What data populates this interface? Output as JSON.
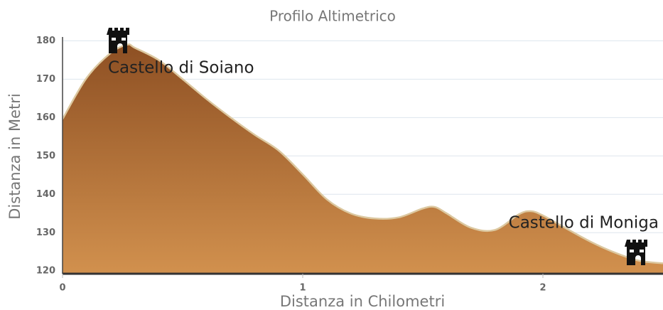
{
  "chart_data": {
    "type": "area",
    "title": "Profilo Altimetrico",
    "x_label": "Distanza in Chilometri",
    "y_label": "Distanza in Metri",
    "x": [
      0,
      0.1,
      0.2,
      0.27,
      0.3,
      0.4,
      0.5,
      0.6,
      0.7,
      0.8,
      0.9,
      1.0,
      1.1,
      1.2,
      1.3,
      1.4,
      1.5,
      1.55,
      1.6,
      1.7,
      1.8,
      1.9,
      1.95,
      2.0,
      2.1,
      2.2,
      2.3,
      2.4,
      2.5
    ],
    "series": [
      {
        "color": "#a0602a",
        "values": [
          159.6,
          170.3,
          176.8,
          179,
          178.2,
          175,
          170,
          164.8,
          160,
          155.5,
          151.4,
          145.2,
          138.7,
          135,
          133.7,
          134,
          136.3,
          136.7,
          135,
          131.3,
          130.7,
          134.8,
          135.6,
          134.5,
          131,
          127.6,
          124.8,
          122.7,
          122
        ]
      }
    ],
    "xlim": [
      0,
      2.5
    ],
    "ylim": [
      119.3,
      181
    ],
    "xticks": [
      0,
      1,
      2
    ],
    "yticks": [
      120,
      130,
      140,
      150,
      160,
      170,
      180
    ],
    "grid": true,
    "annotations": [
      "Castello di Soiano",
      "Castello di Moniga"
    ]
  }
}
